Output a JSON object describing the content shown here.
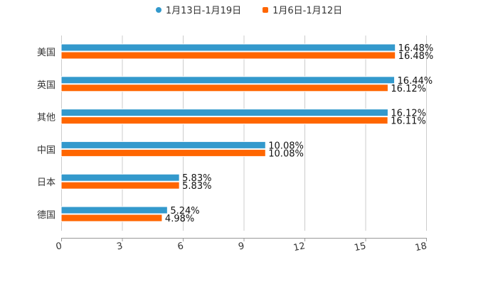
{
  "chart_data": {
    "type": "bar",
    "orientation": "horizontal",
    "categories": [
      "美国",
      "英国",
      "其他",
      "中国",
      "日本",
      "德国"
    ],
    "series": [
      {
        "name": "1月13日-1月19日",
        "color": "#3399cc",
        "values": [
          16.48,
          16.44,
          16.12,
          10.08,
          5.83,
          5.24
        ]
      },
      {
        "name": "1月6日-1月12日",
        "color": "#ff6600",
        "values": [
          16.48,
          16.12,
          16.11,
          10.08,
          5.83,
          4.98
        ]
      }
    ],
    "value_suffix": "%",
    "xlim": [
      0,
      18
    ],
    "xticks": [
      "0",
      "3",
      "6",
      "9",
      "12",
      "15",
      "18"
    ],
    "grid": true,
    "legend_position": "top"
  }
}
